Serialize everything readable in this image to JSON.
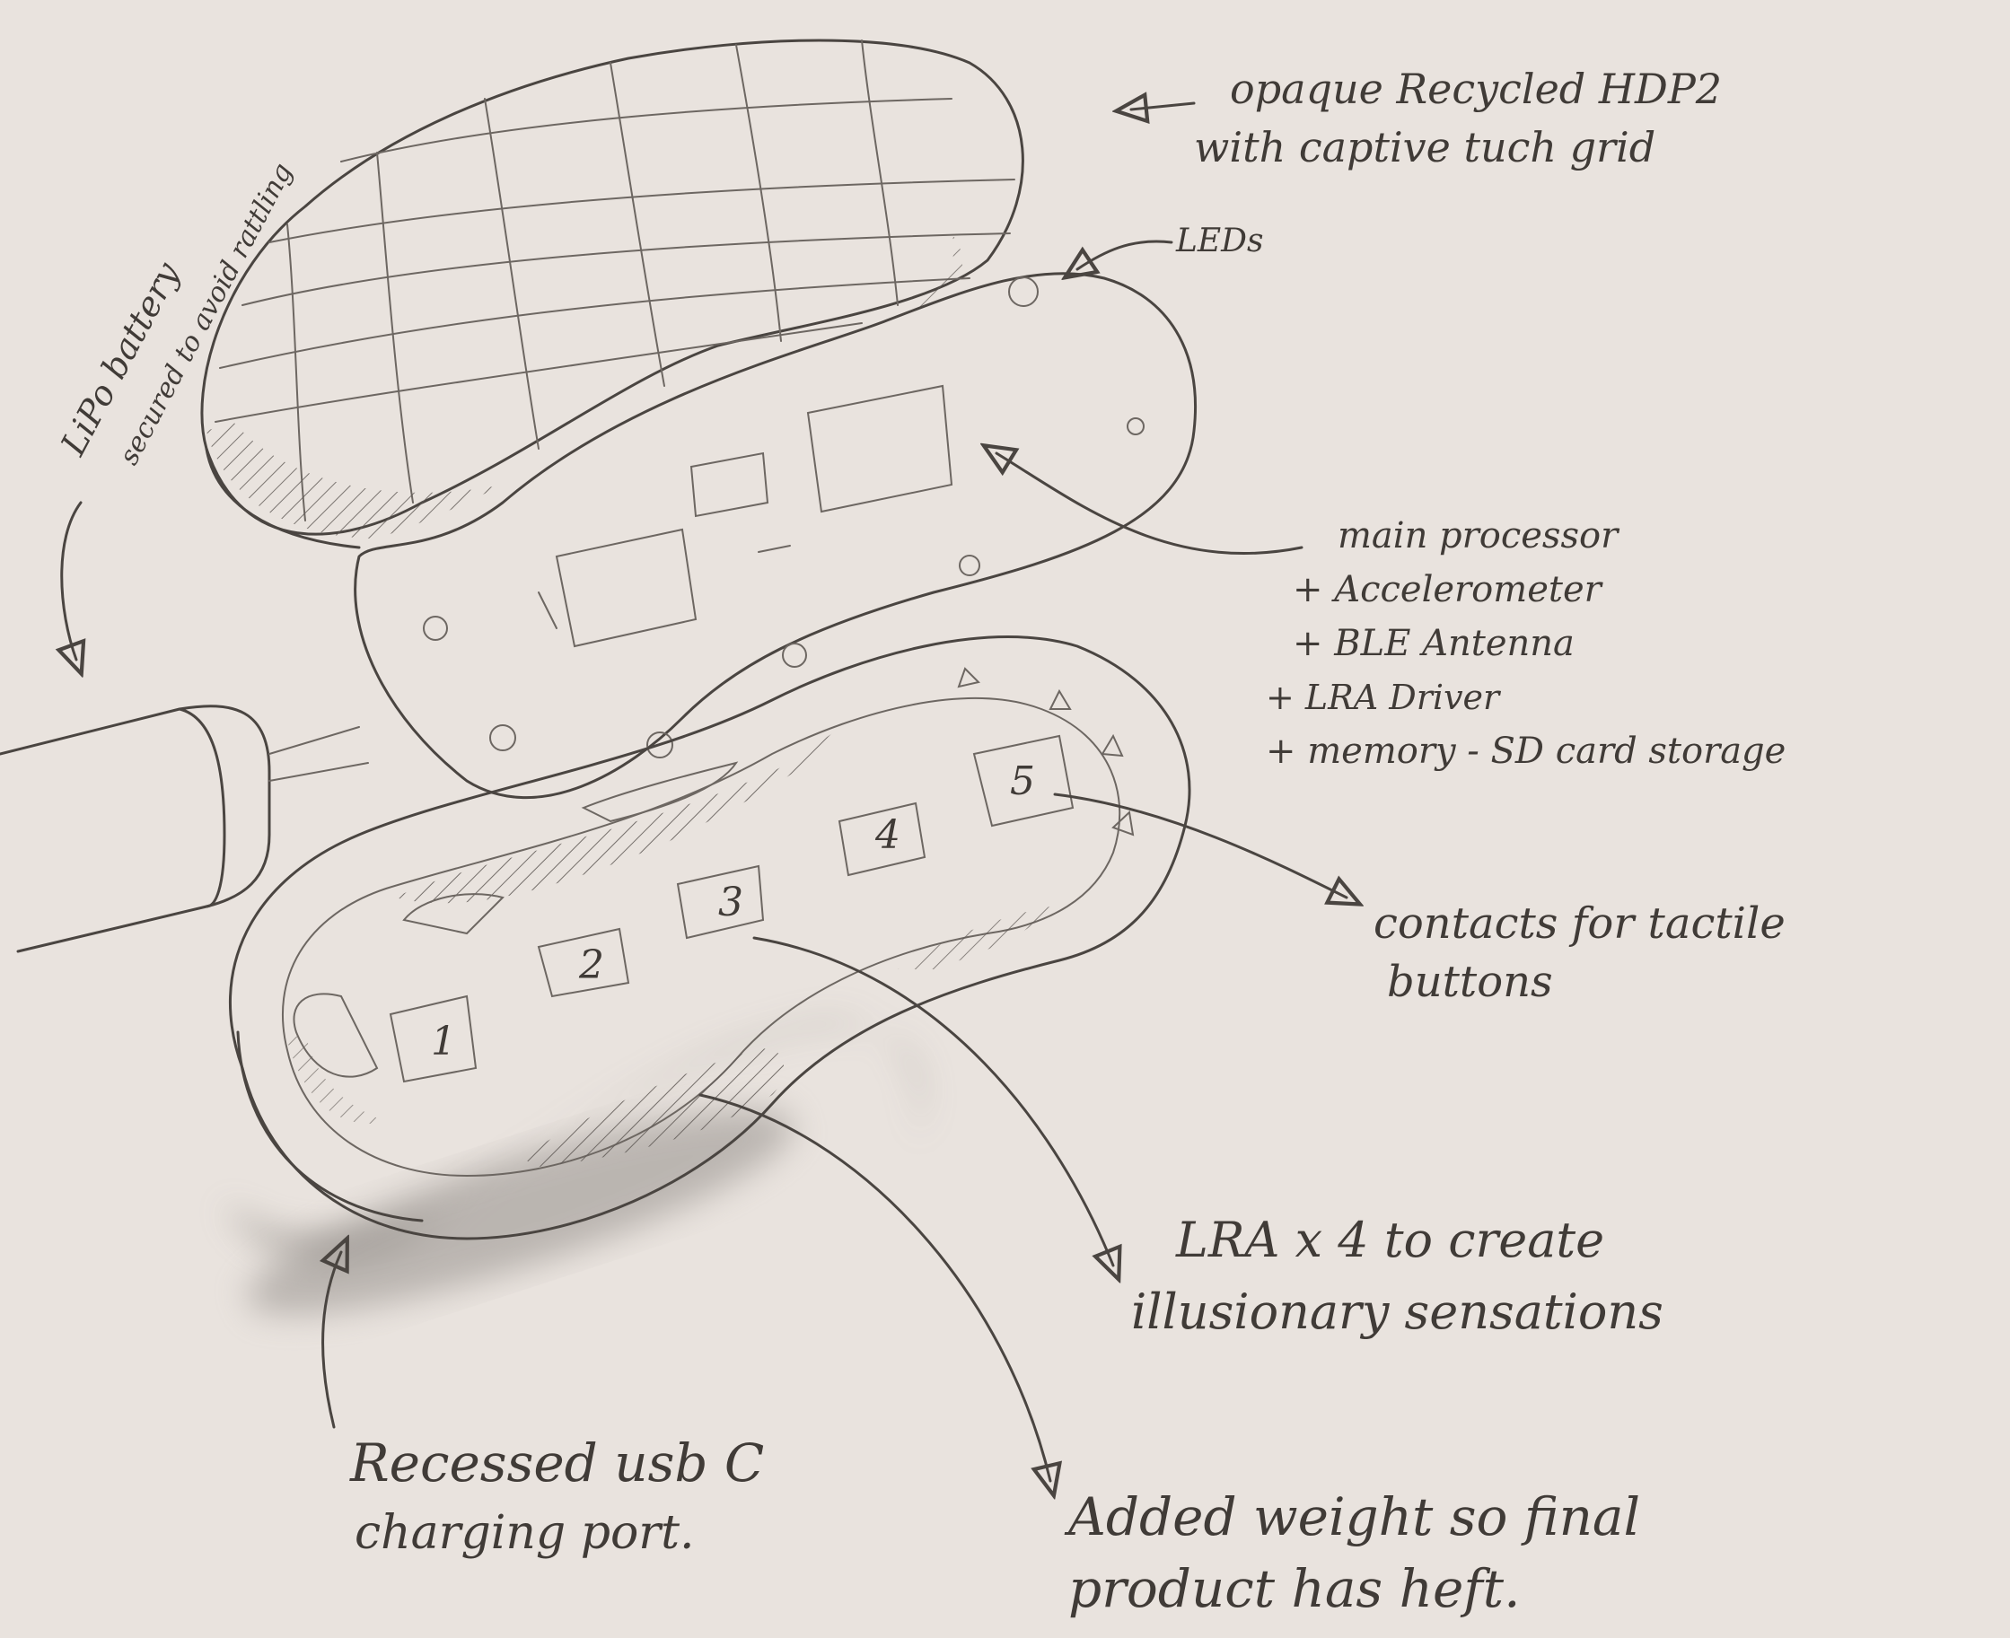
{
  "labels": {
    "shell": [
      "opaque Recycled HDP2",
      "with captive tuch grid"
    ],
    "leds": "LEDs",
    "battery": [
      "LiPo battery",
      "secured to avoid rattling"
    ],
    "processor": [
      "main processor",
      "+ Accelerometer",
      "+ BLE Antenna",
      "+ LRA Driver",
      "+ memory - SD card storage"
    ],
    "contacts": [
      "contacts for tactile",
      "buttons"
    ],
    "lra": [
      "LRA x 4 to create",
      "illusionary sensations"
    ],
    "usb": [
      "Recessed usb C",
      "charging port."
    ],
    "weight": [
      "Added weight so final",
      "product has heft."
    ]
  },
  "button_numbers": [
    "1",
    "2",
    "3",
    "4",
    "5"
  ],
  "colors": {
    "paper": "#e9e3de",
    "pencil": "#4a4541",
    "shadow": "#8d8884"
  }
}
